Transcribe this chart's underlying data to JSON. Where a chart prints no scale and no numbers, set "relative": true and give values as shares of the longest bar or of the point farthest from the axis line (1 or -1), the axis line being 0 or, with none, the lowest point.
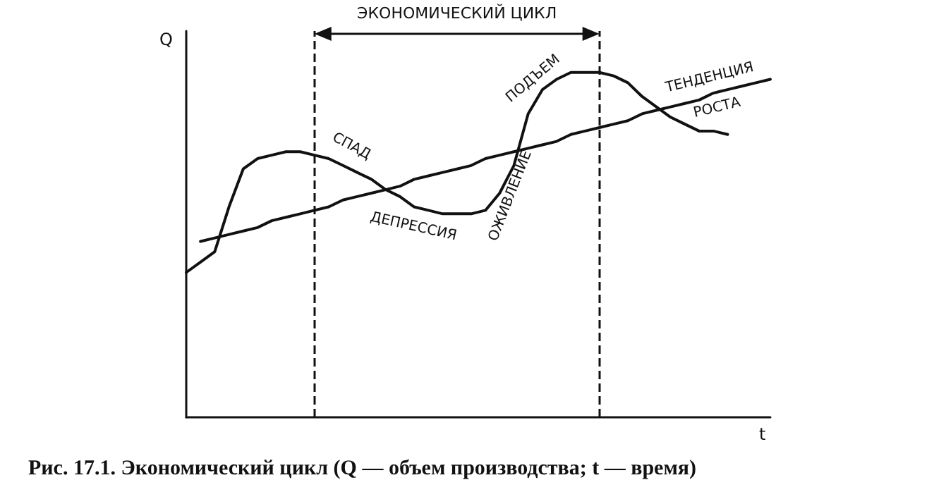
{
  "chart_data": {
    "type": "line",
    "relative": true,
    "xlabel": "t",
    "ylabel": "Q",
    "grid": false,
    "legend": false,
    "marker": "none",
    "line_style": "solid",
    "categories": [
      null,
      null,
      null,
      null,
      null,
      null,
      null,
      null,
      null,
      null,
      null,
      null,
      null,
      null,
      null,
      null,
      null,
      null,
      null,
      null,
      null,
      null,
      null,
      null,
      null,
      null,
      null,
      null,
      null,
      null,
      null,
      null,
      null,
      null,
      null,
      null,
      null,
      null,
      null,
      null,
      null,
      null
    ],
    "series": [
      {
        "color": "#111111",
        "values": [
          0.42,
          0.45,
          0.48,
          0.61,
          0.72,
          0.75,
          0.76,
          0.77,
          0.77,
          0.76,
          0.75,
          0.73,
          0.71,
          0.69,
          0.66,
          0.64,
          0.61,
          0.6,
          0.59,
          0.59,
          0.59,
          0.6,
          0.65,
          0.73,
          0.88,
          0.95,
          0.98,
          1,
          1,
          1,
          0.99,
          0.97,
          0.93,
          0.9,
          0.87,
          0.85,
          0.83,
          0.83,
          0.82,
          null,
          null,
          null
        ]
      },
      {
        "name": "ТЕНДЕНЦИЯ РОСТА",
        "color": "#111111",
        "values": [
          null,
          0.51,
          0.52,
          0.53,
          0.54,
          0.55,
          0.57,
          0.58,
          0.59,
          0.6,
          0.61,
          0.63,
          0.64,
          0.65,
          0.66,
          0.67,
          0.69,
          0.7,
          0.71,
          0.72,
          0.73,
          0.75,
          0.76,
          0.77,
          0.78,
          0.79,
          0.8,
          0.82,
          0.83,
          0.84,
          0.85,
          0.86,
          0.88,
          0.89,
          0.9,
          0.91,
          0.92,
          0.94,
          0.95,
          0.96,
          0.97,
          0.98
        ]
      }
    ],
    "annotations": [
      "ЭКОНОМИЧЕСКИЙ ЦИКЛ",
      "СПАД",
      "ДЕПРЕССИЯ",
      "ОЖИВЛЕНИЕ",
      "ПОДЪЕМ",
      "Рис. 17.1. Экономический цикл (Q — объем производства; t — время)"
    ]
  }
}
